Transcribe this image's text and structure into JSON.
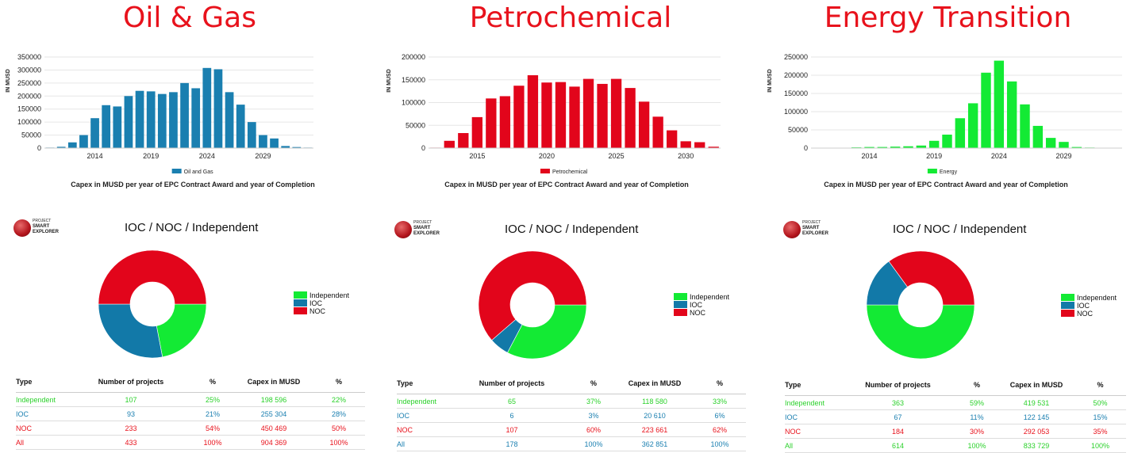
{
  "y_axis_label": "IN MUSD",
  "chart_caption": "Capex in MUSD per year of EPC Contract Award and year of Completion",
  "donut_title": "IOC / NOC / Independent",
  "logo": {
    "line1": "PROJECT",
    "line2": "SMART",
    "line3": "EXPLORER"
  },
  "table_headers": [
    "Type",
    "Number of projects",
    "%",
    "Capex in MUSD",
    "%"
  ],
  "colors": {
    "independent": "#13ea34",
    "ioc": "#1279a8",
    "noc": "#e2051b",
    "oil_gas_bar": "#1a7fb0",
    "petro_bar": "#e2051b",
    "energy_bar": "#13ea34"
  },
  "panels": [
    {
      "title": "Oil & Gas",
      "chart_data": {
        "type": "bar",
        "categories": [
          2010,
          2011,
          2012,
          2013,
          2014,
          2015,
          2016,
          2017,
          2018,
          2019,
          2020,
          2021,
          2022,
          2023,
          2024,
          2025,
          2026,
          2027,
          2028,
          2029,
          2030,
          2031,
          2032,
          2033
        ],
        "xticks": [
          2014,
          2019,
          2024,
          2029
        ],
        "yticks": [
          0,
          50000,
          100000,
          150000,
          200000,
          250000,
          300000,
          350000
        ],
        "ylim": [
          0,
          350000
        ],
        "ylabel": "IN MUSD",
        "series": [
          {
            "name": "Oil and Gas",
            "values": [
              2000,
              5000,
              22000,
              50000,
              115000,
              165000,
              160000,
              200000,
              220000,
              218000,
              208000,
              215000,
              250000,
              230000,
              308000,
              303000,
              215000,
              167000,
              100000,
              50000,
              37000,
              8000,
              4000,
              2000
            ]
          }
        ],
        "legend": "bottom"
      },
      "donut": {
        "independent": 22,
        "ioc": 28,
        "noc": 50
      },
      "table": [
        {
          "type": "Independent",
          "projects": "107",
          "pct": "25%",
          "capex": "198 596",
          "cpct": "22%"
        },
        {
          "type": "IOC",
          "projects": "93",
          "pct": "21%",
          "capex": "255 304",
          "cpct": "28%"
        },
        {
          "type": "NOC",
          "projects": "233",
          "pct": "54%",
          "capex": "450 469",
          "cpct": "50%"
        },
        {
          "type": "All",
          "projects": "433",
          "pct": "100%",
          "capex": "904 369",
          "cpct": "100%"
        }
      ]
    },
    {
      "title": "Petrochemical",
      "chart_data": {
        "type": "bar",
        "categories": [
          2012,
          2013,
          2014,
          2015,
          2016,
          2017,
          2018,
          2019,
          2020,
          2021,
          2022,
          2023,
          2024,
          2025,
          2026,
          2027,
          2028,
          2029,
          2030,
          2031,
          2032
        ],
        "xticks": [
          2015,
          2020,
          2025,
          2030
        ],
        "yticks": [
          0,
          50000,
          100000,
          150000,
          200000
        ],
        "ylim": [
          0,
          200000
        ],
        "ylabel": "IN MUSD",
        "series": [
          {
            "name": "Petrochemical",
            "values": [
              1000,
              16000,
              33000,
              68000,
              109000,
              114000,
              137000,
              160000,
              144000,
              145000,
              135000,
              152000,
              141000,
              152000,
              132000,
              102000,
              69000,
              39000,
              15000,
              13000,
              3000
            ]
          }
        ],
        "legend": "bottom"
      },
      "donut": {
        "independent": 33,
        "ioc": 6,
        "noc": 62
      },
      "table": [
        {
          "type": "Independent",
          "projects": "65",
          "pct": "37%",
          "capex": "118 580",
          "cpct": "33%"
        },
        {
          "type": "IOC",
          "projects": "6",
          "pct": "3%",
          "capex": "20 610",
          "cpct": "6%"
        },
        {
          "type": "NOC",
          "projects": "107",
          "pct": "60%",
          "capex": "223 661",
          "cpct": "62%"
        },
        {
          "type": "All",
          "projects": "178",
          "pct": "100%",
          "capex": "362 851",
          "cpct": "100%"
        }
      ]
    },
    {
      "title": "Energy Transition",
      "chart_data": {
        "type": "bar",
        "categories": [
          2010,
          2011,
          2012,
          2013,
          2014,
          2015,
          2016,
          2017,
          2018,
          2019,
          2020,
          2021,
          2022,
          2023,
          2024,
          2025,
          2026,
          2027,
          2028,
          2029,
          2030,
          2031,
          2032,
          2033
        ],
        "xticks": [
          2014,
          2019,
          2024,
          2029
        ],
        "yticks": [
          0,
          50000,
          100000,
          150000,
          200000,
          250000
        ],
        "ylim": [
          0,
          250000
        ],
        "ylabel": "IN MUSD",
        "series": [
          {
            "name": "Energy",
            "values": [
              500,
              800,
              1000,
              2000,
              3000,
              3000,
              4000,
              5000,
              7000,
              20000,
              37000,
              82000,
              123000,
              207000,
              240000,
              183000,
              120000,
              61000,
              28000,
              17000,
              3000,
              1500,
              800,
              400
            ]
          }
        ],
        "legend": "bottom"
      },
      "donut": {
        "independent": 50,
        "ioc": 15,
        "noc": 35
      },
      "table": [
        {
          "type": "Independent",
          "projects": "363",
          "pct": "59%",
          "capex": "419 531",
          "cpct": "50%"
        },
        {
          "type": "IOC",
          "projects": "67",
          "pct": "11%",
          "capex": "122 145",
          "cpct": "15%"
        },
        {
          "type": "NOC",
          "projects": "184",
          "pct": "30%",
          "capex": "292 053",
          "cpct": "35%"
        },
        {
          "type": "All",
          "projects": "614",
          "pct": "100%",
          "capex": "833 729",
          "cpct": "100%"
        }
      ]
    }
  ]
}
